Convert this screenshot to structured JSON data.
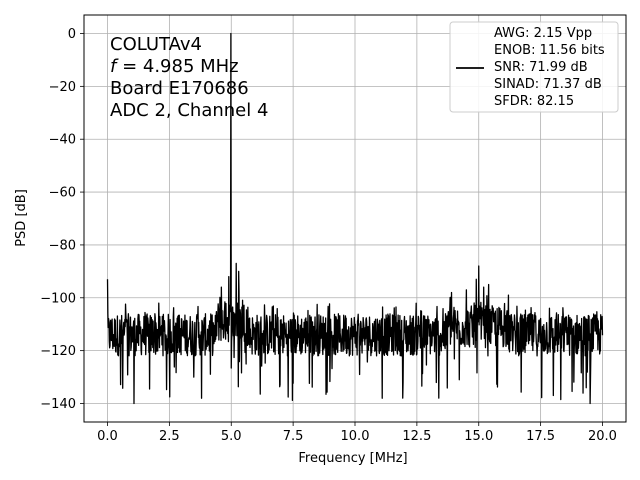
{
  "chart_data": {
    "type": "line",
    "xlabel": "Frequency [MHz]",
    "ylabel": "PSD [dB]",
    "xlim": [
      -0.95,
      20.95
    ],
    "ylim": [
      -147,
      7
    ],
    "x_ticks": [
      0,
      2.5,
      5,
      7.5,
      10,
      12.5,
      15,
      17.5,
      20
    ],
    "x_tick_labels": [
      "0.0",
      "2.5",
      "5.0",
      "7.5",
      "10.0",
      "12.5",
      "15.0",
      "17.5",
      "20.0"
    ],
    "y_ticks": [
      0,
      -20,
      -40,
      -60,
      -80,
      -100,
      -120,
      -140
    ],
    "y_tick_labels": [
      "0",
      "−20",
      "−40",
      "−60",
      "−80",
      "−100",
      "−120",
      "−140"
    ],
    "grid": true,
    "line_color": "#000000",
    "legend_placement": "top-right",
    "annotation": {
      "line1": "COLUTAv4",
      "line2_symbol": "f",
      "line2_rest": " = 4.985 MHz",
      "line3": "Board E170686",
      "line4": "ADC 2, Channel 4"
    },
    "legend": [
      "AWG: 2.15 Vpp",
      "ENOB: 11.56 bits",
      "SNR: 71.99 dB",
      "SINAD: 71.37 dB",
      "SFDR: 82.15"
    ],
    "series": [
      {
        "noise_floor_db": -114,
        "peaks": [
          {
            "x": 0.0,
            "y": -93
          },
          {
            "x": 4.985,
            "y": 0
          },
          {
            "x": 4.9,
            "y": -92
          },
          {
            "x": 5.2,
            "y": -87
          },
          {
            "x": 5.3,
            "y": -90
          },
          {
            "x": 4.6,
            "y": -96
          },
          {
            "x": 15.0,
            "y": -88
          },
          {
            "x": 14.9,
            "y": -93
          },
          {
            "x": 14.5,
            "y": -97
          },
          {
            "x": 15.2,
            "y": -96
          },
          {
            "x": 15.4,
            "y": -95
          },
          {
            "x": 13.9,
            "y": -98
          },
          {
            "x": 16.2,
            "y": -99
          }
        ],
        "dips": [
          {
            "x": 1.07,
            "y": -140
          },
          {
            "x": 3.8,
            "y": -138
          },
          {
            "x": 11.1,
            "y": -138
          },
          {
            "x": 19.5,
            "y": -140
          }
        ]
      }
    ]
  }
}
